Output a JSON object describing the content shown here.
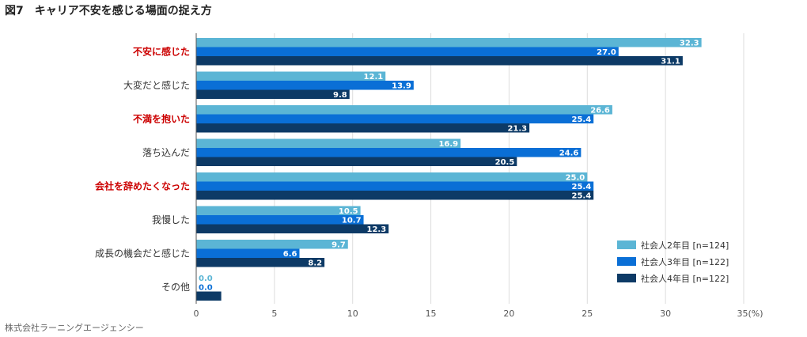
{
  "title": "図7　キャリア不安を感じる場面の捉え方",
  "source": "株式会社ラーニングエージェンシー",
  "chart_data": {
    "type": "bar",
    "orientation": "horizontal",
    "title": "図7　キャリア不安を感じる場面の捉え方",
    "xlabel": "",
    "ylabel": "",
    "unit": "(%)",
    "xlim": [
      0,
      35
    ],
    "xticks": [
      0,
      5,
      10,
      15,
      20,
      25,
      30,
      35
    ],
    "categories": [
      "不安に感じた",
      "大変だと感じた",
      "不満を抱いた",
      "落ち込んだ",
      "会社を辞めたくなった",
      "我慢した",
      "成長の機会だと感じた",
      "その他"
    ],
    "highlighted_categories": [
      "不安に感じた",
      "不満を抱いた",
      "会社を辞めたくなった"
    ],
    "series": [
      {
        "name": "社会人2年目 [n=124]",
        "color": "#5bb5d5",
        "values": [
          32.3,
          12.1,
          26.6,
          16.9,
          25.0,
          10.5,
          9.7,
          0.0
        ]
      },
      {
        "name": "社会人3年目 [n=122]",
        "color": "#0a6fd6",
        "values": [
          27.0,
          13.9,
          25.4,
          24.6,
          25.4,
          10.7,
          6.6,
          0.0
        ]
      },
      {
        "name": "社会人4年目 [n=122]",
        "color": "#0d3a66",
        "values": [
          31.1,
          9.8,
          21.3,
          20.5,
          25.4,
          12.3,
          8.2,
          1.6
        ]
      }
    ],
    "legend_position": "bottom-right",
    "gridlines": true,
    "highlight_color": "#cc0000",
    "text_color": "#333333",
    "grid_color": "#dddddd"
  }
}
